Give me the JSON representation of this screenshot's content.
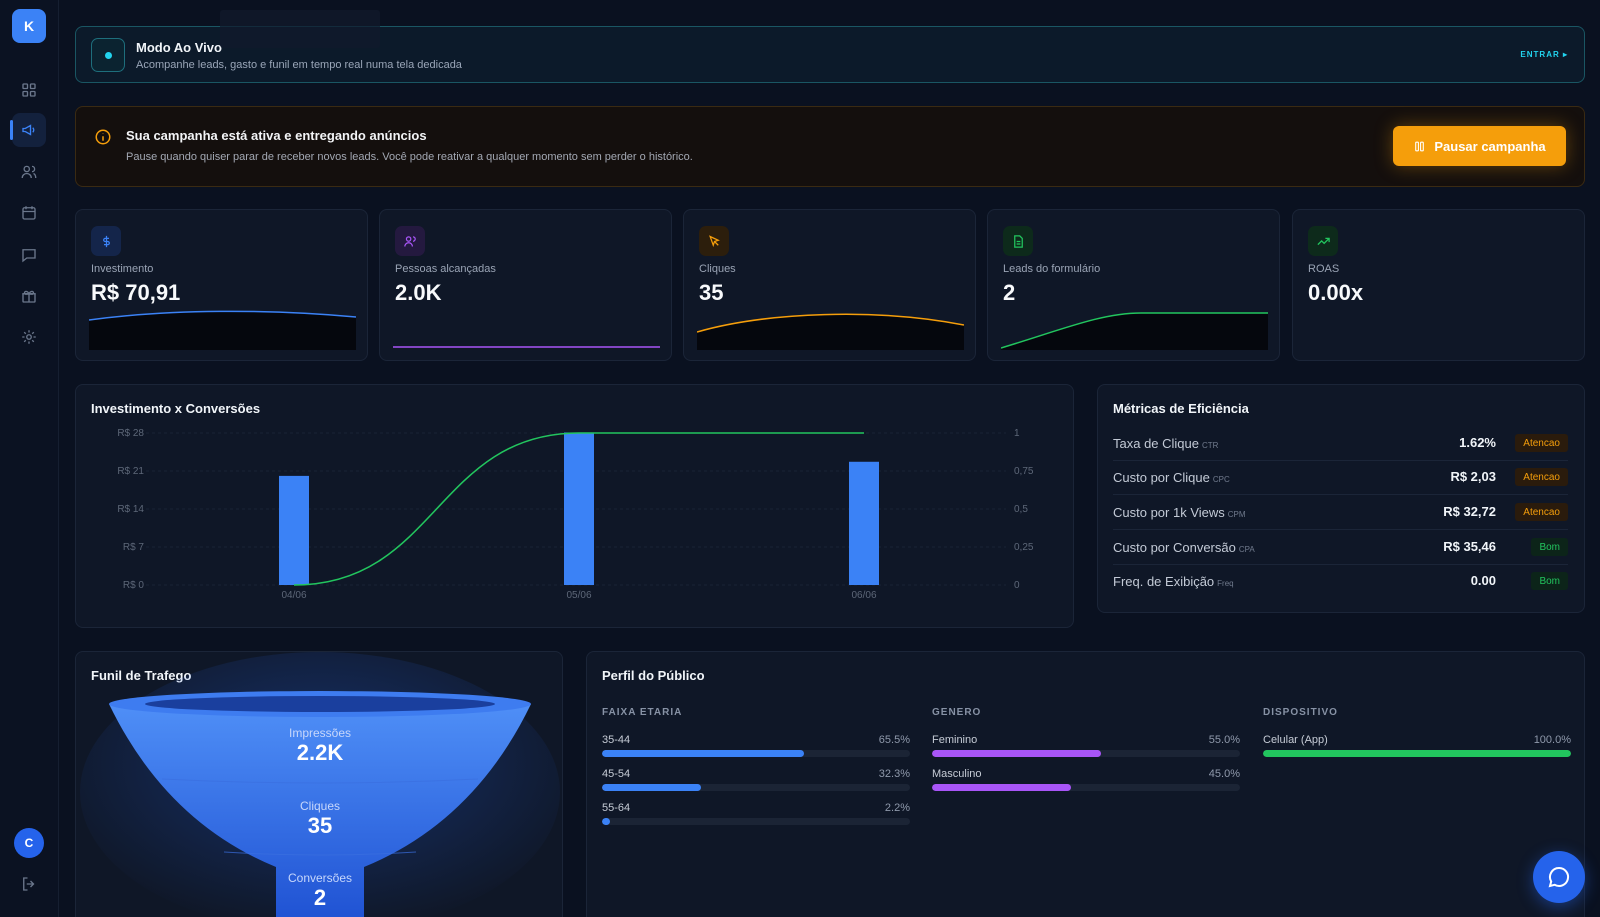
{
  "sidebar": {
    "logo": "K",
    "items": [
      {
        "name": "grid-icon"
      },
      {
        "name": "megaphone-icon",
        "active": true
      },
      {
        "name": "users-icon"
      },
      {
        "name": "calendar-icon"
      },
      {
        "name": "chat-icon"
      },
      {
        "name": "gift-icon"
      },
      {
        "name": "gear-icon"
      }
    ],
    "avatar": "C"
  },
  "live": {
    "title": "Modo Ao Vivo",
    "subtitle": "Acompanhe leads, gasto e funil em tempo real numa tela dedicada",
    "enter": "ENTRAR ▸"
  },
  "alert": {
    "title": "Sua campanha está ativa e entregando anúncios",
    "subtitle": "Pause quando quiser parar de receber novos leads. Você pode reativar a qualquer momento sem perder o histórico.",
    "button": "Pausar campanha"
  },
  "kpis": [
    {
      "label": "Investimento",
      "value": "R$ 70,91",
      "icon": "dollar-icon",
      "color": "#3b82f6"
    },
    {
      "label": "Pessoas alcançadas",
      "value": "2.0K",
      "icon": "users-icon",
      "color": "#a855f7"
    },
    {
      "label": "Cliques",
      "value": "35",
      "icon": "cursor-icon",
      "color": "#f59e0b"
    },
    {
      "label": "Leads do formulário",
      "value": "2",
      "icon": "document-icon",
      "color": "#22c55e"
    },
    {
      "label": "ROAS",
      "value": "0.00x",
      "icon": "trending-up-icon",
      "color": "#22c55e"
    }
  ],
  "chart_data": {
    "type": "bar",
    "title": "Investimento x Conversões",
    "categories": [
      "04/06",
      "05/06",
      "06/06"
    ],
    "series": [
      {
        "values": [
          20.1,
          28.1,
          22.7
        ],
        "axis": "left",
        "type": "bar",
        "color": "#3b82f6"
      },
      {
        "values": [
          0,
          1,
          1
        ],
        "axis": "right",
        "type": "line",
        "color": "#22c55e"
      }
    ],
    "left_ticks": [
      "R$ 0",
      "R$ 7",
      "R$ 14",
      "R$ 21",
      "R$ 28"
    ],
    "right_ticks": [
      "0",
      "0,25",
      "0,5",
      "0,75",
      "1"
    ],
    "ylim": [
      0,
      28
    ],
    "y2lim": [
      0,
      1
    ]
  },
  "efficiency": {
    "title": "Métricas de Eficiência",
    "rows": [
      {
        "label": "Taxa de Clique",
        "abbr": "CTR",
        "value": "1.62%",
        "badge": "Atencao",
        "status": "warn"
      },
      {
        "label": "Custo por Clique",
        "abbr": "CPC",
        "value": "R$ 2,03",
        "badge": "Atencao",
        "status": "warn"
      },
      {
        "label": "Custo por 1k Views",
        "abbr": "CPM",
        "value": "R$ 32,72",
        "badge": "Atencao",
        "status": "warn"
      },
      {
        "label": "Custo por Conversão",
        "abbr": "CPA",
        "value": "R$ 35,46",
        "badge": "Bom",
        "status": "good"
      },
      {
        "label": "Freq. de Exibição",
        "abbr": "Freq",
        "value": "0.00",
        "badge": "Bom",
        "status": "good"
      }
    ]
  },
  "funnel": {
    "title": "Funil de Trafego",
    "stages": [
      {
        "label": "Impressões",
        "value": "2.2K"
      },
      {
        "label": "Cliques",
        "value": "35"
      },
      {
        "label": "Conversões",
        "value": "2"
      }
    ]
  },
  "audience": {
    "title": "Perfil do Público",
    "groups": [
      {
        "heading": "FAIXA ETARIA",
        "color": "#3b82f6",
        "items": [
          {
            "name": "35-44",
            "pct_label": "65.5%",
            "pct": 65.5
          },
          {
            "name": "45-54",
            "pct_label": "32.3%",
            "pct": 32.3
          },
          {
            "name": "55-64",
            "pct_label": "2.2%",
            "pct": 2.2
          }
        ]
      },
      {
        "heading": "GENERO",
        "color": "#a855f7",
        "items": [
          {
            "name": "Feminino",
            "pct_label": "55.0%",
            "pct": 55.0
          },
          {
            "name": "Masculino",
            "pct_label": "45.0%",
            "pct": 45.0
          }
        ]
      },
      {
        "heading": "DISPOSITIVO",
        "color": "#22c55e",
        "items": [
          {
            "name": "Celular (App)",
            "pct_label": "100.0%",
            "pct": 100.0
          }
        ]
      }
    ]
  }
}
